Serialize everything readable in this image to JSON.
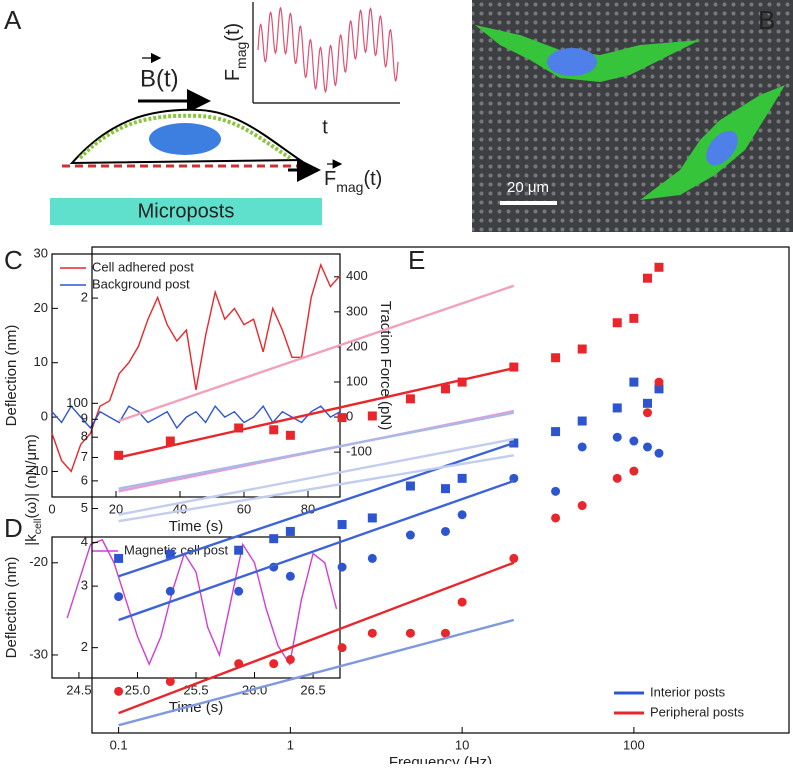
{
  "panels": [
    "A",
    "B",
    "C",
    "D",
    "E"
  ],
  "panel_a": {
    "field": "B(t)",
    "force_axis": {
      "main": "F",
      "sub": "mag",
      "rest": "(t)"
    },
    "time_axis": "t",
    "force": {
      "main": "F",
      "sub": "mag",
      "rest": "(t)"
    },
    "substrate": "Microposts"
  },
  "panel_b": {
    "scale_bar": "20 μm"
  },
  "chart_data": [
    {
      "type": "line",
      "xlabel": "Time (s)",
      "ylabel": "Deflection (nm)",
      "y2label": "Traction Force (pN)",
      "xlim": [
        0,
        90
      ],
      "xticks": [
        0,
        20,
        40,
        60,
        80
      ],
      "ylim": [
        -14.7,
        30
      ],
      "yticks": [
        -10,
        0,
        10,
        20,
        30
      ],
      "y2lim": [
        -228,
        465
      ],
      "y2ticks": [
        -100,
        0,
        100,
        200,
        300,
        400
      ],
      "legend": "upper left",
      "x": [
        0,
        3,
        6,
        9,
        12,
        15,
        18,
        21,
        24,
        27,
        30,
        33,
        36,
        39,
        42,
        45,
        48,
        51,
        54,
        57,
        60,
        63,
        66,
        69,
        72,
        75,
        78,
        81,
        84,
        87,
        90
      ],
      "series": [
        {
          "name": "Cell adhered post",
          "color": "#e8262b",
          "values": [
            -3,
            -8,
            -10,
            -5,
            -3,
            2,
            3,
            8,
            10,
            13,
            18,
            22,
            17,
            14,
            16,
            5,
            15,
            23,
            18,
            20,
            17,
            18,
            12,
            20,
            16,
            11,
            11,
            22,
            28,
            24,
            26
          ]
        },
        {
          "name": "Background post",
          "color": "#2e55d0",
          "values": [
            1,
            -1,
            2,
            0,
            -2,
            1,
            0,
            -1,
            2,
            1,
            -1,
            0,
            1,
            -2,
            0,
            1,
            -1,
            2,
            0,
            1,
            -1,
            0,
            2,
            -1,
            1,
            0,
            -1,
            1,
            2,
            0,
            1
          ]
        }
      ]
    },
    {
      "type": "line",
      "xlabel": "Time (s)",
      "ylabel": "Deflection (nm)",
      "xlim": [
        24.27,
        26.73
      ],
      "xticks": [
        24.5,
        {
          "value": 25,
          "label": "25.0"
        },
        25.5,
        {
          "value": 26,
          "label": "26.0"
        },
        26.5
      ],
      "ylim": [
        -32.5,
        -17.2
      ],
      "yticks": [
        -30,
        -20
      ],
      "legend": "upper center",
      "x": [
        24.4,
        24.5,
        24.6,
        24.7,
        24.8,
        24.9,
        25.0,
        25.1,
        25.2,
        25.3,
        25.4,
        25.5,
        25.6,
        25.7,
        25.8,
        25.9,
        26.0,
        26.1,
        26.2,
        26.3,
        26.4,
        26.5,
        26.6,
        26.7
      ],
      "series": [
        {
          "name": "Magnetic cell post",
          "color": "#d13ed6",
          "values": [
            -26,
            -22,
            -18,
            -17.5,
            -20,
            -24,
            -28,
            -31,
            -28,
            -23,
            -19,
            -21,
            -27,
            -30,
            -24,
            -18,
            -20,
            -25,
            -29,
            -31,
            -24,
            -19,
            -20,
            -25
          ]
        }
      ]
    },
    {
      "type": "scatter",
      "xlabel": "Frequency (Hz)",
      "ylabel": {
        "main": "|k",
        "sub": "cell",
        "rest": "(ω)| (nN/μm)"
      },
      "xscale": "log",
      "yscale": "log",
      "xlim": [
        0.07,
        800
      ],
      "xticks": [
        0.1,
        1,
        10,
        100
      ],
      "ylim": [
        11.4,
        280
      ],
      "yticks": [
        {
          "value": 20,
          "label": "2"
        },
        {
          "value": 30,
          "label": "3"
        },
        {
          "value": 40,
          "label": "4"
        },
        {
          "value": 50,
          "label": "5"
        },
        {
          "value": 60,
          "label": "6"
        },
        {
          "value": 70,
          "label": "7"
        },
        {
          "value": 80,
          "label": "8"
        },
        {
          "value": 90,
          "label": "9"
        },
        100,
        {
          "value": 200,
          "label": "2"
        }
      ],
      "legend": "lower right",
      "legend_items": [
        {
          "name": "Interior posts",
          "color": "#2e55d0"
        },
        {
          "name": "Peripheral posts",
          "color": "#e8262b"
        }
      ],
      "series": [
        {
          "marker": "square",
          "color": "#e8262b",
          "x": [
            0.1,
            0.2,
            0.5,
            0.8,
            1,
            2,
            3,
            5,
            8,
            10,
            20,
            35,
            50,
            80,
            100,
            120,
            140
          ],
          "values": [
            71,
            78,
            85,
            84,
            81,
            91,
            92,
            103,
            110,
            115,
            127,
            135,
            143,
            170,
            175,
            228,
            245
          ]
        },
        {
          "marker": "square",
          "color": "#2e55d0",
          "x": [
            0.1,
            0.2,
            0.5,
            0.8,
            1,
            2,
            3,
            5,
            8,
            10,
            20,
            35,
            50,
            80,
            100,
            120,
            140
          ],
          "values": [
            36,
            37,
            38,
            41,
            43,
            45,
            47,
            58,
            57,
            61,
            77,
            83,
            89,
            97,
            115,
            100,
            110
          ]
        },
        {
          "marker": "circle",
          "color": "#2e55d0",
          "x": [
            0.1,
            0.2,
            0.5,
            0.8,
            1,
            2,
            3,
            5,
            8,
            10,
            20,
            35,
            50,
            80,
            100,
            120,
            140
          ],
          "values": [
            28,
            29,
            29,
            34,
            32,
            34,
            36,
            42,
            43,
            48,
            61,
            56,
            75,
            80,
            78,
            75,
            72
          ]
        },
        {
          "marker": "circle",
          "color": "#e8262b",
          "x": [
            0.1,
            0.2,
            0.5,
            0.8,
            1,
            2,
            3,
            5,
            8,
            10,
            20,
            35,
            50,
            80,
            100,
            120,
            140
          ],
          "values": [
            15,
            16,
            18,
            18,
            18.5,
            20,
            22,
            22,
            22,
            27,
            36,
            47,
            51,
            61,
            64,
            94,
            115
          ]
        },
        {
          "mode": "line",
          "color": "#e8262b",
          "x": [
            0.1,
            20
          ],
          "values": [
            70,
            126
          ]
        },
        {
          "mode": "line",
          "color": "#3c64d8",
          "x": [
            0.1,
            20
          ],
          "values": [
            32,
            77
          ]
        },
        {
          "mode": "line",
          "color": "#3c64d8",
          "x": [
            0.1,
            20
          ],
          "values": [
            24,
            60
          ]
        },
        {
          "mode": "line",
          "color": "#e8262b",
          "x": [
            0.1,
            20
          ],
          "values": [
            13,
            35
          ]
        },
        {
          "mode": "line",
          "color": "#f2a2b8",
          "x": [
            0.1,
            20
          ],
          "values": [
            89,
            217
          ]
        },
        {
          "mode": "line",
          "color": "#e69ad8",
          "x": [
            0.1,
            20
          ],
          "values": [
            56,
            95
          ]
        },
        {
          "mode": "line",
          "color": "#a9b8e6",
          "x": [
            0.1,
            20
          ],
          "values": [
            57,
            94
          ]
        },
        {
          "mode": "line",
          "color": "#c3cdee",
          "x": [
            0.1,
            20
          ],
          "values": [
            48,
            79
          ]
        },
        {
          "mode": "line",
          "color": "#c3cdee",
          "x": [
            0.1,
            20
          ],
          "values": [
            46,
            71
          ]
        },
        {
          "mode": "line",
          "color": "#7f98e0",
          "x": [
            0.1,
            20
          ],
          "values": [
            12,
            24
          ]
        }
      ]
    }
  ]
}
